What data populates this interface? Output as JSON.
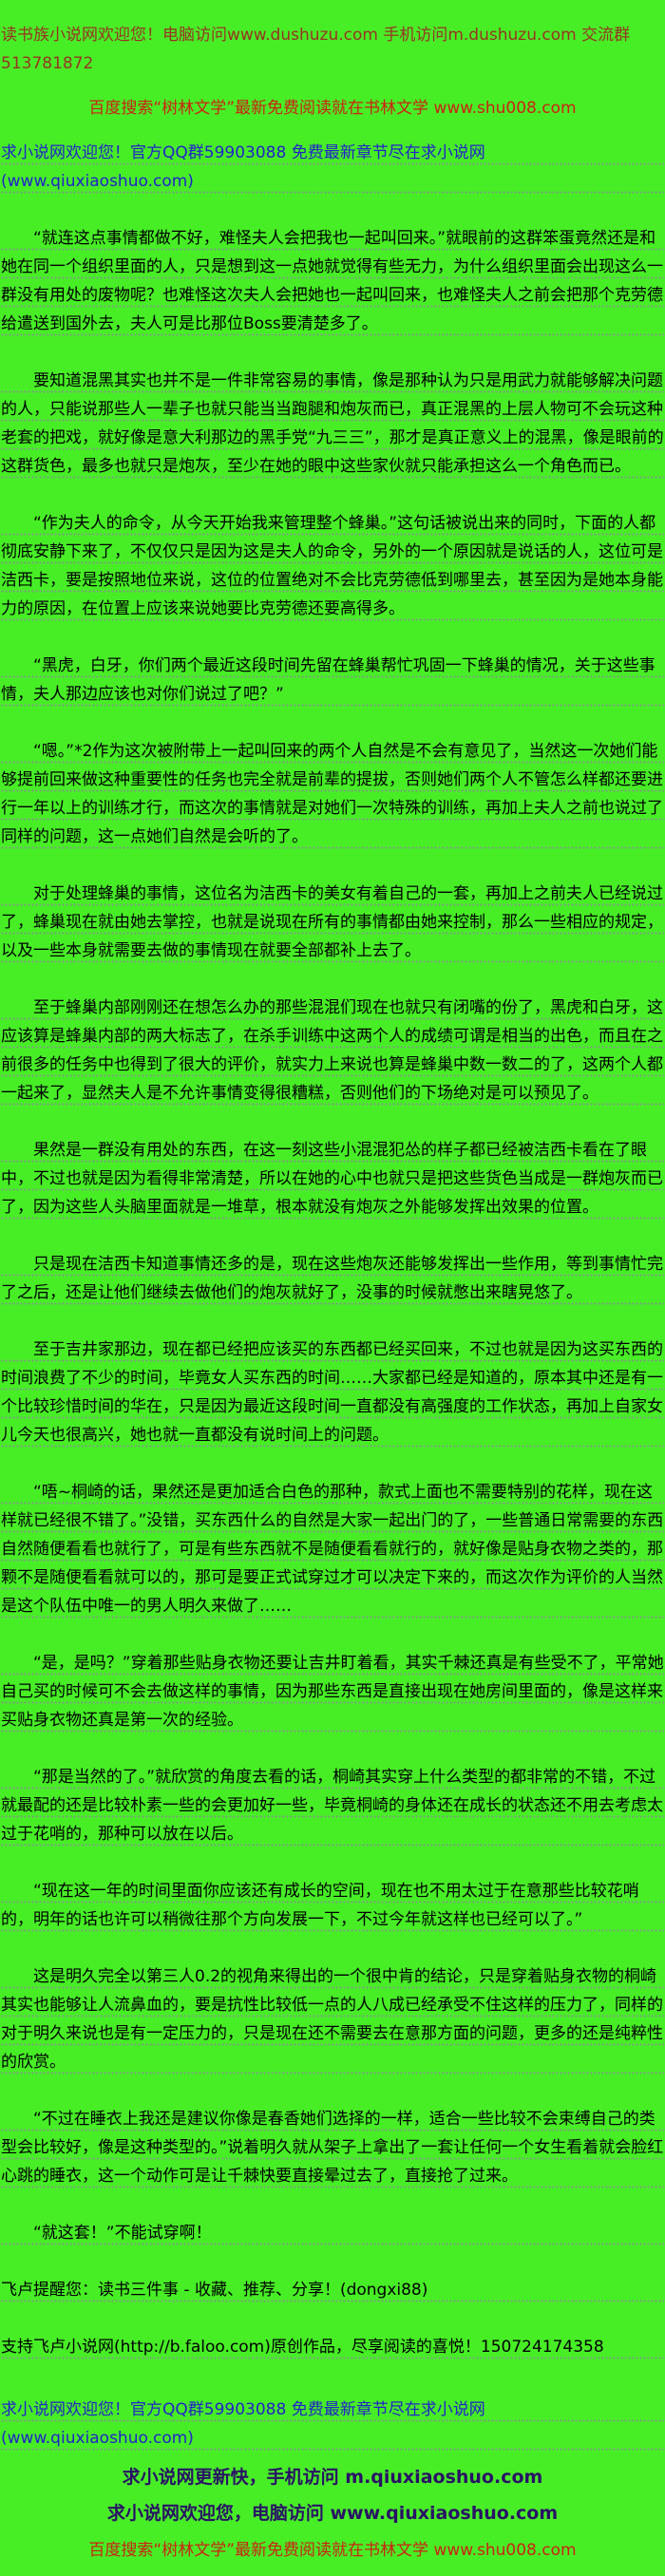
{
  "colors": {
    "background": "#47ee26",
    "body_text": "#000000",
    "header_dark_red": "#993322",
    "promo_red": "#cc2211",
    "link_blue": "#2222cc",
    "footer_navy": "#2a1166",
    "dotted_rule_gray": "#8a9191"
  },
  "header": {
    "welcome_line": "读书族小说网欢迎您！电脑访问www.dushuzu.com 手机访问m.dushuzu.com 交流群513781872",
    "baidu_line": "百度搜索“树林文学”最新免费阅读就在书林文学 www.shu008.com",
    "qiu_link": "求小说网欢迎您！官方QQ群59903088 免费最新章节尽在求小说网(www.qiuxiaoshuo.com)"
  },
  "paragraphs": [
    {
      "indent": true,
      "text": "“就连这点事情都做不好，难怪夫人会把我也一起叫回来。”就眼前的这群笨蛋竟然还是和她在同一个组织里面的人，只是想到这一点她就觉得有些无力，为什么组织里面会出现这么一群没有用处的废物呢？也难怪这次夫人会把她也一起叫回来，也难怪夫人之前会把那个克劳德给遣送到国外去，夫人可是比那位Boss要清楚多了。"
    },
    {
      "indent": true,
      "text": "要知道混黑其实也并不是一件非常容易的事情，像是那种认为只是用武力就能够解决问题的人，只能说那些人一辈子也就只能当当跑腿和炮灰而已，真正混黑的上层人物可不会玩这种老套的把戏，就好像是意大利那边的黑手党“九三三”，那才是真正意义上的混黑，像是眼前的这群货色，最多也就只是炮灰，至少在她的眼中这些家伙就只能承担这么一个角色而已。"
    },
    {
      "indent": true,
      "text": "“作为夫人的命令，从今天开始我来管理整个蜂巢。”这句话被说出来的同时，下面的人都彻底安静下来了，不仅仅只是因为这是夫人的命令，另外的一个原因就是说话的人，这位可是洁西卡，要是按照地位来说，这位的位置绝对不会比克劳德低到哪里去，甚至因为是她本身能力的原因，在位置上应该来说她要比克劳德还要高得多。"
    },
    {
      "indent": true,
      "text": "“黑虎，白牙，你们两个最近这段时间先留在蜂巢帮忙巩固一下蜂巢的情况，关于这些事情，夫人那边应该也对你们说过了吧？”"
    },
    {
      "indent": true,
      "text": "“嗯。”*2作为这次被附带上一起叫回来的两个人自然是不会有意见了，当然这一次她们能够提前回来做这种重要性的任务也完全就是前辈的提拔，否则她们两个人不管怎么样都还要进行一年以上的训练才行，而这次的事情就是对她们一次特殊的训练，再加上夫人之前也说过了同样的问题，这一点她们自然是会听的了。"
    },
    {
      "indent": true,
      "text": "对于处理蜂巢的事情，这位名为洁西卡的美女有着自己的一套，再加上之前夫人已经说过了，蜂巢现在就由她去掌控，也就是说现在所有的事情都由她来控制，那么一些相应的规定，以及一些本身就需要去做的事情现在就要全部都补上去了。"
    },
    {
      "indent": true,
      "text": "至于蜂巢内部刚刚还在想怎么办的那些混混们现在也就只有闭嘴的份了，黑虎和白牙，这应该算是蜂巢内部的两大标志了，在杀手训练中这两个人的成绩可谓是相当的出色，而且在之前很多的任务中也得到了很大的评价，就实力上来说也算是蜂巢中数一数二的了，这两个人都一起来了，显然夫人是不允许事情变得很糟糕，否则他们的下场绝对是可以预见了。"
    },
    {
      "indent": true,
      "text": "果然是一群没有用处的东西，在这一刻这些小混混犯怂的样子都已经被洁西卡看在了眼中，不过也就是因为看得非常清楚，所以在她的心中也就只是把这些货色当成是一群炮灰而已了，因为这些人头脑里面就是一堆草，根本就没有炮灰之外能够发挥出效果的位置。"
    },
    {
      "indent": true,
      "text": "只是现在洁西卡知道事情还多的是，现在这些炮灰还能够发挥出一些作用，等到事情忙完了之后，还是让他们继续去做他们的炮灰就好了，没事的时候就憋出来瞎晃悠了。"
    },
    {
      "indent": true,
      "text": "至于吉井家那边，现在都已经把应该买的东西都已经买回来，不过也就是因为这买东西的时间浪费了不少的时间，毕竟女人买东西的时间……大家都已经是知道的，原本其中还是有一个比较珍惜时间的华在，只是因为最近这段时间一直都没有高强度的工作状态，再加上自家女儿今天也很高兴，她也就一直都没有说时间上的问题。"
    },
    {
      "indent": true,
      "text": "“唔~桐崎的话，果然还是更加适合白色的那种，款式上面也不需要特别的花样，现在这样就已经很不错了。”没错，买东西什么的自然是大家一起出门的了，一些普通日常需要的东西自然随便看看也就行了，可是有些东西就不是随便看看就行的，就好像是贴身衣物之类的，那颗不是随便看看就可以的，那可是要正式试穿过才可以决定下来的，而这次作为评价的人当然是这个队伍中唯一的男人明久来做了……"
    },
    {
      "indent": true,
      "text": "“是，是吗？”穿着那些贴身衣物还要让吉井盯着看，其实千棘还真是有些受不了，平常她自己买的时候可不会去做这样的事情，因为那些东西是直接出现在她房间里面的，像是这样来买贴身衣物还真是第一次的经验。"
    },
    {
      "indent": true,
      "text": "“那是当然的了。”就欣赏的角度去看的话，桐崎其实穿上什么类型的都非常的不错，不过就最配的还是比较朴素一些的会更加好一些，毕竟桐崎的身体还在成长的状态还不用去考虑太过于花哨的，那种可以放在以后。"
    },
    {
      "indent": true,
      "text": "“现在这一年的时间里面你应该还有成长的空间，现在也不用太过于在意那些比较花哨的，明年的话也许可以稍微往那个方向发展一下，不过今年就这样也已经可以了。”"
    },
    {
      "indent": true,
      "text": "这是明久完全以第三人0.2的视角来得出的一个很中肯的结论，只是穿着贴身衣物的桐崎其实也能够让人流鼻血的，要是抗性比较低一点的人八成已经承受不住这样的压力了，同样的对于明久来说也是有一定压力的，只是现在还不需要去在意那方面的问题，更多的还是纯粹性的欣赏。"
    },
    {
      "indent": true,
      "text": "“不过在睡衣上我还是建议你像是春香她们选择的一样，适合一些比较不会束缚自己的类型会比较好，像是这种类型的。”说着明久就从架子上拿出了一套让任何一个女生看着就会脸红心跳的睡衣，这一个动作可是让千棘快要直接晕过去了，直接抢了过来。"
    },
    {
      "indent": true,
      "text": "“就这套！”不能试穿啊！"
    },
    {
      "indent": false,
      "text": "飞卢提醒您：读书三件事 - 收藏、推荐、分享！(dongxi88)"
    },
    {
      "indent": false,
      "text": "支持飞卢小说网(http://b.faloo.com)原创作品，尽享阅读的喜悦！150724174358"
    }
  ],
  "footer": {
    "qiu_link": "求小说网欢迎您！官方QQ群59903088 免费最新章节尽在求小说网(www.qiuxiaoshuo.com)",
    "mobile_line": "求小说网更新快，手机访问 m.qiuxiaoshuo.com",
    "pc_line": "求小说网欢迎您，电脑访问 www.qiuxiaoshuo.com",
    "baidu_line": "百度搜索“树林文学”最新免费阅读就在书林文学 www.shu008.com"
  }
}
